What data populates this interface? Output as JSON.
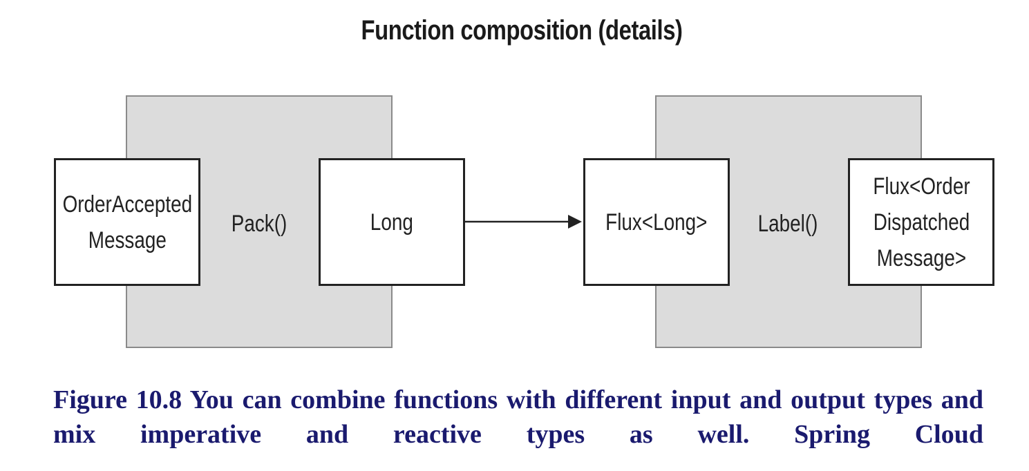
{
  "diagram": {
    "title": "Function composition (details)",
    "left_function": {
      "label": "Pack()",
      "input": "OrderAccepted\nMessage",
      "output": "Long"
    },
    "right_function": {
      "label": "Label()",
      "input": "Flux<Long>",
      "output": "Flux<Order\nDispatched\nMessage>"
    }
  },
  "caption": {
    "text": "Figure 10.8 You can combine functions with different input and output types and mix imperative and reactive types as well. Spring Cloud"
  },
  "colors": {
    "panel_fill": "#dcdcdc",
    "caption": "#1a1a6e"
  }
}
